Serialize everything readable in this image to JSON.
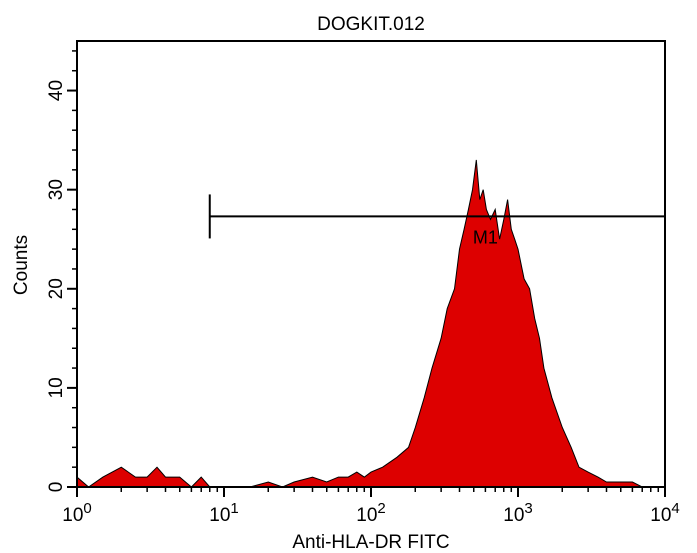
{
  "chart_data": {
    "type": "area",
    "title": "DOGKIT.012",
    "xlabel": "Anti-HLA-DR FITC",
    "ylabel": "Counts",
    "x_scale": "log",
    "xlim": [
      1,
      10000
    ],
    "ylim": [
      0,
      45
    ],
    "x_ticks": [
      {
        "value": 1,
        "base": "10",
        "exp": "0"
      },
      {
        "value": 10,
        "base": "10",
        "exp": "1"
      },
      {
        "value": 100,
        "base": "10",
        "exp": "2"
      },
      {
        "value": 1000,
        "base": "10",
        "exp": "3"
      },
      {
        "value": 10000,
        "base": "10",
        "exp": "4"
      }
    ],
    "y_ticks": [
      {
        "value": 0,
        "label": "0"
      },
      {
        "value": 10,
        "label": "10"
      },
      {
        "value": 20,
        "label": "20"
      },
      {
        "value": 30,
        "label": "30"
      },
      {
        "value": 40,
        "label": "40"
      }
    ],
    "fill_color": "#dd0000",
    "line_color": "#000000",
    "series": [
      {
        "x": [
          1,
          1.2,
          1.5,
          2,
          2.5,
          3,
          3.5,
          4,
          5,
          6,
          7,
          8,
          10,
          15,
          20,
          25,
          30,
          40,
          50,
          60,
          70,
          80,
          90,
          100,
          120,
          150,
          180,
          200,
          230,
          260,
          300,
          330,
          370,
          400,
          430,
          460,
          490,
          520,
          550,
          580,
          610,
          650,
          700,
          750,
          800,
          850,
          900,
          950,
          1000,
          1100,
          1200,
          1300,
          1400,
          1500,
          1700,
          2000,
          2300,
          2600,
          3000,
          3500,
          4000,
          5000,
          6000,
          7000,
          10000
        ],
        "y": [
          1,
          0,
          1,
          2,
          1,
          1,
          2,
          1,
          1,
          0,
          1,
          0,
          0,
          0,
          0.5,
          0,
          0.5,
          1,
          0.5,
          1,
          1,
          1.5,
          1,
          1.5,
          2,
          3,
          4,
          6,
          9,
          12,
          15,
          18,
          20,
          24,
          26,
          28,
          30,
          33,
          29,
          30,
          28,
          27,
          28,
          25,
          27,
          29,
          26,
          25,
          24,
          21,
          20,
          17,
          15,
          12,
          9,
          6,
          4,
          2,
          1.5,
          1,
          0.5,
          0.5,
          0.5,
          0,
          0
        ]
      }
    ],
    "marker": {
      "label": "M1",
      "x_start": 8,
      "x_end": 10000,
      "y": 27.3
    }
  }
}
